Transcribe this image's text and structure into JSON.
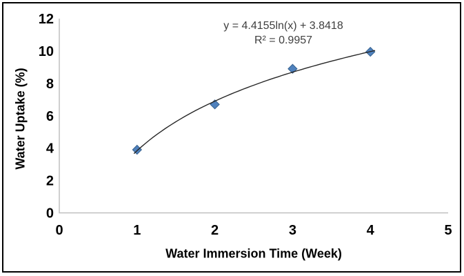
{
  "chart_data": {
    "type": "scatter",
    "title": "",
    "xlabel": "Water Immersion Time (Week)",
    "ylabel": "Water Uptake (%)",
    "x": [
      1,
      2,
      3,
      4
    ],
    "y": [
      3.9,
      6.7,
      8.9,
      9.95
    ],
    "xlim": [
      0,
      5
    ],
    "ylim": [
      0,
      12
    ],
    "xticks": [
      0,
      1,
      2,
      3,
      4,
      5
    ],
    "yticks": [
      0,
      2,
      4,
      6,
      8,
      10,
      12
    ],
    "grid": false,
    "legend": false,
    "marker": {
      "shape": "diamond",
      "fill": "#4f81bd",
      "stroke": "#36618e",
      "size": 13
    },
    "trendline": {
      "type": "logarithmic",
      "a": 4.4155,
      "b": 3.8418,
      "color": "#262626",
      "equation_label": "y = 4.4155ln(x) + 3.8418",
      "r_squared_label": "R² = 0.9957"
    },
    "axis_color": "#bfbfbf",
    "tick_color": "#000000",
    "annotation_color": "#3f3f3f",
    "frame_color": "#000000"
  }
}
